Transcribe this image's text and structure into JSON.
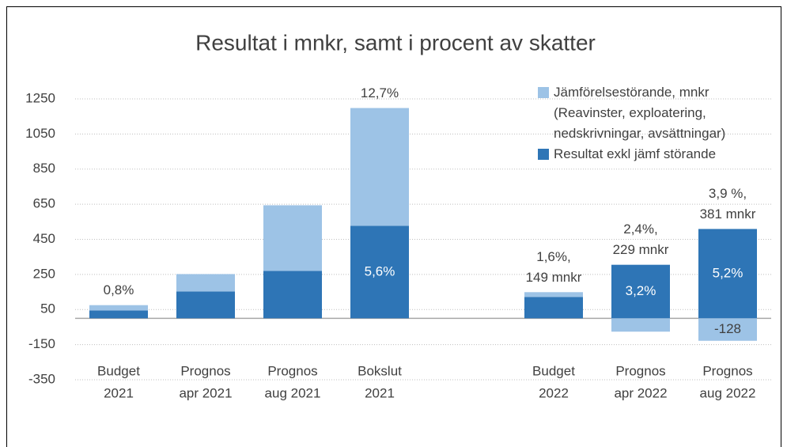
{
  "chart_data": {
    "type": "stacked_bar",
    "title": "Resultat i mnkr, samt i procent av skatter",
    "categories": [
      [
        "Budget",
        "2021"
      ],
      [
        "Prognos",
        "apr 2021"
      ],
      [
        "Prognos",
        "aug 2021"
      ],
      [
        "Bokslut",
        "2021"
      ],
      null,
      [
        "Budget",
        "2022"
      ],
      [
        "Prognos",
        "apr 2022"
      ],
      [
        "Prognos",
        "aug 2022"
      ]
    ],
    "series": [
      {
        "name": "Resultat exkl jämf störande",
        "color": "#2e75b6",
        "values": [
          45,
          153,
          270,
          527,
          null,
          122,
          305,
          509
        ],
        "value_labels": [
          null,
          null,
          null,
          "5,6%",
          null,
          null,
          "3,2%",
          "5,2%"
        ]
      },
      {
        "name": "Jämförelsestörande, mnkr (Reavinster, exploatering, nedskrivningar, avsättningar)",
        "color": "#9dc3e6",
        "values": [
          30,
          99,
          374,
          671,
          null,
          27,
          -76,
          -128
        ],
        "value_labels": [
          null,
          null,
          null,
          null,
          null,
          null,
          null,
          "-128"
        ]
      }
    ],
    "total_labels": [
      [
        "0,8%"
      ],
      null,
      null,
      [
        "12,7%"
      ],
      null,
      [
        "1,6%,",
        "149 mnkr"
      ],
      [
        "2,4%,",
        "229 mnkr"
      ],
      [
        "3,9 %,",
        "381 mnkr"
      ]
    ],
    "ylim": [
      -350,
      1250
    ],
    "yticks": [
      -350,
      -150,
      50,
      250,
      450,
      650,
      850,
      1050,
      1250
    ],
    "grid": true,
    "legend": "top-right"
  }
}
